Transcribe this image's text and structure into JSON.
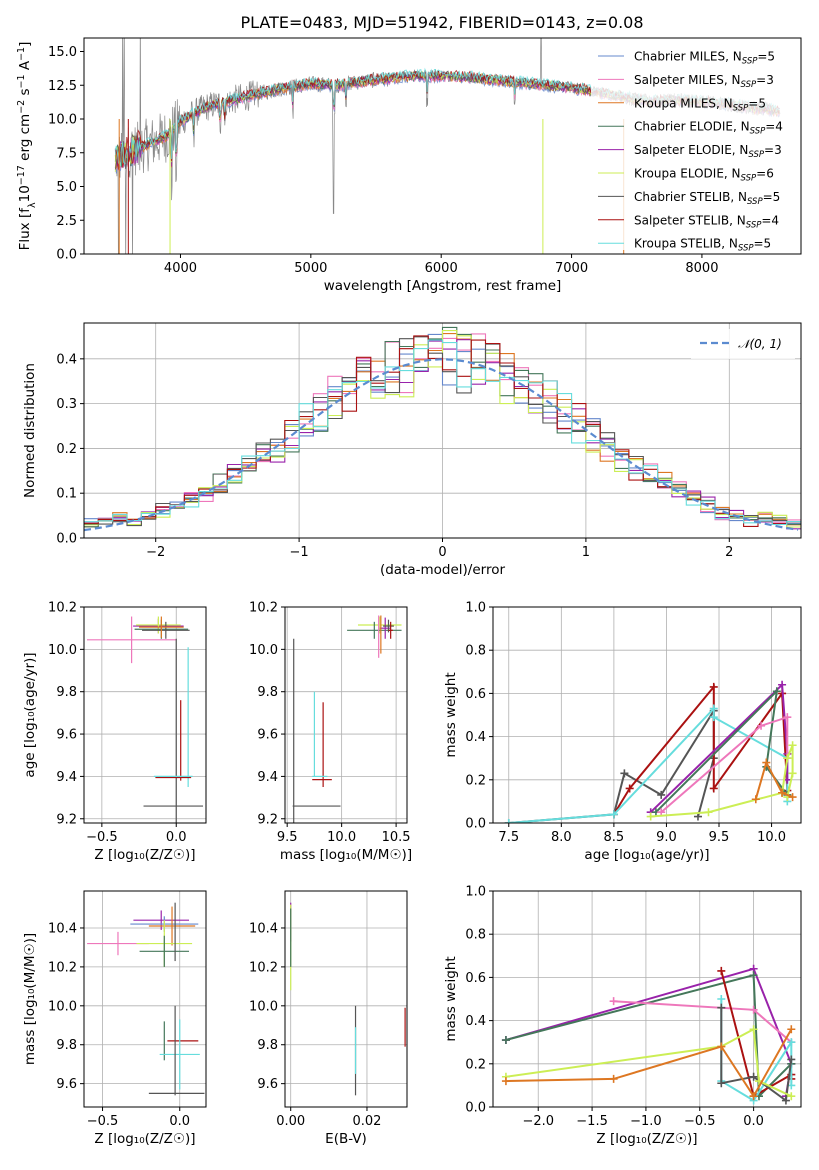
{
  "figure_title": "PLATE=0483, MJD=51942, FIBERID=0143, z=0.08",
  "colors": {
    "chabrier_miles": "#6688cc",
    "salpeter_miles": "#ee77bb",
    "kroupa_miles": "#dd7722",
    "chabrier_elodie": "#44775a",
    "salpeter_elodie": "#9922aa",
    "kroupa_elodie": "#ccee55",
    "chabrier_stelib": "#555555",
    "salpeter_stelib": "#aa1111",
    "kroupa_stelib": "#66dddd",
    "data": "#888888",
    "gaussian": "#5b8bd0"
  },
  "chart_data": [
    {
      "id": "spectrum",
      "type": "line",
      "title": "PLATE=0483, MJD=51942, FIBERID=0143, z=0.08",
      "xlabel": "wavelength [Angstrom, rest frame]",
      "ylabel_parts": [
        "Flux [f",
        "λ",
        "10",
        "−17",
        " erg cm",
        "−2",
        " s",
        "−1",
        " A",
        "−1",
        "]"
      ],
      "xlim": [
        3260,
        8760
      ],
      "ylim": [
        0,
        16
      ],
      "xticks": [
        4000,
        5000,
        6000,
        7000,
        8000
      ],
      "yticks": [
        0.0,
        2.5,
        5.0,
        7.5,
        10.0,
        12.5,
        15.0
      ],
      "grid": false,
      "legend_position": "top-right",
      "legend": [
        {
          "label": "Chabrier MILES, N",
          "sub": "SSP",
          "n": "=5",
          "color": "#6688cc"
        },
        {
          "label": "Salpeter MILES, N",
          "sub": "SSP",
          "n": "=3",
          "color": "#ee77bb"
        },
        {
          "label": "Kroupa MILES, N",
          "sub": "SSP",
          "n": "=5",
          "color": "#dd7722"
        },
        {
          "label": "Chabrier ELODIE, N",
          "sub": "SSP",
          "n": "=4",
          "color": "#44775a"
        },
        {
          "label": "Salpeter ELODIE, N",
          "sub": "SSP",
          "n": "=3",
          "color": "#9922aa"
        },
        {
          "label": "Kroupa ELODIE, N",
          "sub": "SSP",
          "n": "=6",
          "color": "#ccee55"
        },
        {
          "label": "Chabrier STELIB, N",
          "sub": "SSP",
          "n": "=5",
          "color": "#555555"
        },
        {
          "label": "Salpeter STELIB, N",
          "sub": "SSP",
          "n": "=4",
          "color": "#aa1111"
        },
        {
          "label": "Kroupa STELIB, N",
          "sub": "SSP",
          "n": "=5",
          "color": "#66dddd"
        }
      ],
      "continuum_x": [
        3500,
        3600,
        3700,
        3800,
        3900,
        4000,
        4100,
        4200,
        4400,
        4600,
        4800,
        5000,
        5200,
        5400,
        5600,
        5800,
        6000,
        6200,
        6400,
        6600,
        6800,
        7000,
        7200,
        7400,
        7600,
        7800,
        8000,
        8200,
        8400,
        8600
      ],
      "continuum_y": [
        7.0,
        7.6,
        7.9,
        8.3,
        8.8,
        9.8,
        10.4,
        10.9,
        11.4,
        11.9,
        12.3,
        12.6,
        12.5,
        12.8,
        13.0,
        13.2,
        13.2,
        13.1,
        12.9,
        12.7,
        12.5,
        12.3,
        12.0,
        11.6,
        11.3,
        11.4,
        11.3,
        11.1,
        10.8,
        10.6
      ]
    },
    {
      "id": "residuals",
      "type": "histogram",
      "xlabel": "(data-model)/error",
      "ylabel": "Normed distribution",
      "xlim": [
        -2.5,
        2.5
      ],
      "ylim": [
        0,
        0.48
      ],
      "xticks": [
        -2,
        -1,
        0,
        1,
        2
      ],
      "yticks": [
        0.0,
        0.1,
        0.2,
        0.3,
        0.4
      ],
      "grid": true,
      "legend_position": "top-right",
      "legend": [
        {
          "label": "𝒩(0, 1)",
          "color": "#5b8bd0",
          "style": "dashed"
        }
      ],
      "bin_width": 0.1,
      "gaussian": {
        "mean": 0,
        "sigma": 1
      }
    },
    {
      "id": "age-vs-Z",
      "type": "scatter",
      "xlabel": "Z [log₁₀(Z/Z☉)]",
      "ylabel": "age  [log₁₀(age/yr)]",
      "xlim": [
        -0.62,
        0.2
      ],
      "ylim": [
        9.18,
        10.2
      ],
      "xticks": [
        -0.5,
        0.0
      ],
      "yticks": [
        9.2,
        9.4,
        9.6,
        9.8,
        10.0,
        10.2
      ],
      "grid": true,
      "points": [
        {
          "x": -0.3,
          "y": 10.045,
          "xerr": 0.3,
          "yerr": 0.11,
          "color": "#ee77bb"
        },
        {
          "x": -0.12,
          "y": 10.11,
          "xerr": 0.17,
          "yerr": 0.035,
          "color": "#9922aa"
        },
        {
          "x": -0.12,
          "y": 10.115,
          "xerr": 0.15,
          "yerr": 0.04,
          "color": "#ccee55"
        },
        {
          "x": -0.1,
          "y": 10.095,
          "xerr": 0.18,
          "yerr": 0.045,
          "color": "#44775a"
        },
        {
          "x": -0.07,
          "y": 10.09,
          "xerr": 0.16,
          "yerr": 0.04,
          "color": "#555555"
        },
        {
          "x": -0.1,
          "y": 10.105,
          "xerr": 0.15,
          "yerr": 0.05,
          "color": "#dd7722"
        },
        {
          "x": 0.0,
          "y": 9.6,
          "xerr": 0.0,
          "yerr": 0.45,
          "color": "#555555"
        },
        {
          "x": 0.03,
          "y": 9.57,
          "xerr": 0.0,
          "yerr": 0.19,
          "color": "#aa1111"
        },
        {
          "x": 0.08,
          "y": 9.68,
          "xerr": 0.0,
          "yerr": 0.33,
          "color": "#66dddd"
        },
        {
          "x": -0.02,
          "y": 9.395,
          "xerr": 0.12,
          "yerr": 0.0,
          "color": "#aa1111"
        },
        {
          "x": -0.02,
          "y": 9.4,
          "xerr": 0.13,
          "yerr": 0.0,
          "color": "#66dddd"
        },
        {
          "x": -0.02,
          "y": 9.26,
          "xerr": 0.2,
          "yerr": 0.0,
          "color": "#555555"
        }
      ]
    },
    {
      "id": "age-vs-mass",
      "type": "scatter",
      "xlabel": "mass [log₁₀(M/M☉)]",
      "ylabel": "",
      "xlim": [
        9.48,
        10.6
      ],
      "ylim": [
        9.18,
        10.2
      ],
      "xticks": [
        9.5,
        10.0,
        10.5
      ],
      "yticks": [
        9.2,
        9.4,
        9.6,
        9.8,
        10.0,
        10.2
      ],
      "grid": true,
      "points": [
        {
          "x": 10.35,
          "y": 10.115,
          "xerr": 0.2,
          "yerr": 0.04,
          "color": "#ccee55"
        },
        {
          "x": 10.3,
          "y": 10.09,
          "xerr": 0.25,
          "yerr": 0.04,
          "color": "#44775a"
        },
        {
          "x": 10.4,
          "y": 10.1,
          "xerr": 0.05,
          "yerr": 0.05,
          "color": "#9922aa"
        },
        {
          "x": 10.43,
          "y": 10.11,
          "xerr": 0.05,
          "yerr": 0.03,
          "color": "#555555"
        },
        {
          "x": 10.45,
          "y": 10.09,
          "xerr": 0.02,
          "yerr": 0.04,
          "color": "#aa1111"
        },
        {
          "x": 10.34,
          "y": 10.06,
          "xerr": 0.0,
          "yerr": 0.1,
          "color": "#ee77bb"
        },
        {
          "x": 10.36,
          "y": 10.07,
          "xerr": 0.0,
          "yerr": 0.09,
          "color": "#dd7722"
        },
        {
          "x": 9.56,
          "y": 9.6,
          "xerr": 0.0,
          "yerr": 0.45,
          "color": "#555555"
        },
        {
          "x": 9.75,
          "y": 9.6,
          "xerr": 0.0,
          "yerr": 0.2,
          "color": "#66dddd"
        },
        {
          "x": 9.83,
          "y": 9.55,
          "xerr": 0.0,
          "yerr": 0.2,
          "color": "#aa1111"
        },
        {
          "x": 9.82,
          "y": 9.385,
          "xerr": 0.09,
          "yerr": 0.0,
          "color": "#aa1111"
        },
        {
          "x": 9.8,
          "y": 9.4,
          "xerr": 0.07,
          "yerr": 0.0,
          "color": "#66dddd"
        },
        {
          "x": 9.77,
          "y": 9.26,
          "xerr": 0.22,
          "yerr": 0.0,
          "color": "#555555"
        }
      ]
    },
    {
      "id": "weight-vs-age",
      "type": "line",
      "xlabel": "age  [log₁₀(age/yr)]",
      "ylabel": "mass weight",
      "xlim": [
        7.35,
        10.28
      ],
      "ylim": [
        0,
        1
      ],
      "xticks": [
        7.5,
        8.0,
        8.5,
        9.0,
        9.5,
        10.0
      ],
      "yticks": [
        0.0,
        0.2,
        0.4,
        0.6,
        0.8,
        1.0
      ],
      "grid": true,
      "series": [
        {
          "color": "#555555",
          "x": [
            7.5,
            8.5,
            8.6,
            8.95,
            9.45,
            9.45,
            9.3
          ],
          "y": [
            0.0,
            0.04,
            0.23,
            0.13,
            0.52,
            0.3,
            0.03
          ]
        },
        {
          "color": "#aa1111",
          "x": [
            8.5,
            8.65,
            9.45,
            9.45,
            10.1,
            10.15,
            10.1
          ],
          "y": [
            0.04,
            0.16,
            0.63,
            0.16,
            0.6,
            0.15,
            0.14
          ]
        },
        {
          "color": "#66dddd",
          "x": [
            7.5,
            8.5,
            9.45,
            9.45,
            10.15,
            10.15
          ],
          "y": [
            0.0,
            0.04,
            0.53,
            0.49,
            0.3,
            0.1
          ]
        },
        {
          "color": "#9922aa",
          "x": [
            8.85,
            10.1,
            10.15,
            10.15
          ],
          "y": [
            0.05,
            0.64,
            0.32,
            0.2
          ]
        },
        {
          "color": "#44775a",
          "x": [
            8.9,
            10.05,
            9.95,
            10.15
          ],
          "y": [
            0.05,
            0.61,
            0.26,
            0.13
          ]
        },
        {
          "color": "#ee77bb",
          "x": [
            8.95,
            9.9,
            10.15,
            10.15
          ],
          "y": [
            0.05,
            0.45,
            0.49,
            0.3
          ]
        },
        {
          "color": "#ccee55",
          "x": [
            8.85,
            9.4,
            10.1,
            10.15,
            10.2,
            10.2,
            10.15
          ],
          "y": [
            0.03,
            0.05,
            0.14,
            0.3,
            0.36,
            0.23,
            0.12
          ]
        },
        {
          "color": "#dd7722",
          "x": [
            9.85,
            9.95,
            10.1,
            10.2
          ],
          "y": [
            0.11,
            0.28,
            0.14,
            0.12
          ]
        }
      ]
    },
    {
      "id": "mass-vs-Z",
      "type": "scatter",
      "xlabel": "Z [log₁₀(Z/Z☉)]",
      "ylabel": "mass [log₁₀(M/M☉)]",
      "xlim": [
        -0.62,
        0.17
      ],
      "ylim": [
        9.48,
        10.59
      ],
      "xticks": [
        -0.5,
        0.0
      ],
      "yticks": [
        9.6,
        9.8,
        10.0,
        10.2,
        10.4
      ],
      "grid": true,
      "points": [
        {
          "x": -0.4,
          "y": 10.32,
          "xerr": 0.2,
          "yerr": 0.06,
          "color": "#ee77bb"
        },
        {
          "x": -0.12,
          "y": 10.44,
          "xerr": 0.18,
          "yerr": 0.05,
          "color": "#9922aa"
        },
        {
          "x": -0.1,
          "y": 10.42,
          "xerr": 0.22,
          "yerr": 0.04,
          "color": "#6688cc"
        },
        {
          "x": -0.05,
          "y": 10.41,
          "xerr": 0.15,
          "yerr": 0.1,
          "color": "#dd7722"
        },
        {
          "x": -0.1,
          "y": 10.32,
          "xerr": 0.18,
          "yerr": 0.12,
          "color": "#ccee55"
        },
        {
          "x": -0.1,
          "y": 10.28,
          "xerr": 0.16,
          "yerr": 0.08,
          "color": "#44775a"
        },
        {
          "x": -0.03,
          "y": 10.38,
          "xerr": 0.0,
          "yerr": 0.15,
          "color": "#555555"
        },
        {
          "x": -0.1,
          "y": 9.82,
          "xerr": 0.0,
          "yerr": 0.1,
          "color": "#44775a"
        },
        {
          "x": 0.02,
          "y": 9.82,
          "xerr": 0.1,
          "yerr": 0.0,
          "color": "#aa1111"
        },
        {
          "x": 0.0,
          "y": 9.75,
          "xerr": 0.13,
          "yerr": 0.18,
          "color": "#66dddd"
        },
        {
          "x": -0.03,
          "y": 9.77,
          "xerr": 0.0,
          "yerr": 0.23,
          "color": "#555555"
        },
        {
          "x": -0.02,
          "y": 9.55,
          "xerr": 0.18,
          "yerr": 0.0,
          "color": "#555555"
        }
      ]
    },
    {
      "id": "mass-vs-EBV",
      "type": "scatter",
      "xlabel": "E(B-V)",
      "ylabel": "",
      "xlim": [
        -0.0015,
        0.0305
      ],
      "ylim": [
        9.48,
        10.59
      ],
      "xticks": [
        0.0,
        0.02
      ],
      "yticks": [
        9.6,
        9.8,
        10.0,
        10.2,
        10.4
      ],
      "grid": true,
      "points": [
        {
          "x": 0.0,
          "y": 10.43,
          "xerr": 0.0,
          "yerr": 0.1,
          "color": "#9922aa"
        },
        {
          "x": 0.0,
          "y": 10.3,
          "xerr": 0.0,
          "yerr": 0.22,
          "color": "#ccee55"
        },
        {
          "x": 0.0,
          "y": 10.35,
          "xerr": 0.0,
          "yerr": 0.15,
          "color": "#44775a"
        },
        {
          "x": 0.017,
          "y": 9.77,
          "xerr": 0.0,
          "yerr": 0.23,
          "color": "#555555"
        },
        {
          "x": 0.017,
          "y": 9.77,
          "xerr": 0.0,
          "yerr": 0.12,
          "color": "#66dddd"
        },
        {
          "x": 0.03,
          "y": 9.89,
          "xerr": 0.0,
          "yerr": 0.1,
          "color": "#aa1111"
        }
      ]
    },
    {
      "id": "weight-vs-Z",
      "type": "line",
      "xlabel": "Z [log₁₀(Z/Z☉)]",
      "ylabel": "mass weight",
      "xlim": [
        -2.42,
        0.44
      ],
      "ylim": [
        0,
        1
      ],
      "xticks": [
        -2.0,
        -1.5,
        -1.0,
        -0.5,
        0.0
      ],
      "yticks": [
        0.0,
        0.2,
        0.4,
        0.6,
        0.8,
        1.0
      ],
      "grid": true,
      "series": [
        {
          "color": "#9922aa",
          "x": [
            -2.3,
            0.0,
            0.35,
            0.3
          ],
          "y": [
            0.31,
            0.64,
            0.2,
            0.05
          ]
        },
        {
          "color": "#44775a",
          "x": [
            -2.3,
            0.0,
            0.05,
            0.35
          ],
          "y": [
            0.31,
            0.61,
            0.05,
            0.2
          ]
        },
        {
          "color": "#ee77bb",
          "x": [
            -1.3,
            0.0,
            0.35
          ],
          "y": [
            0.49,
            0.45,
            0.3
          ]
        },
        {
          "color": "#aa1111",
          "x": [
            -0.3,
            0.0,
            0.35,
            0.35
          ],
          "y": [
            0.63,
            0.05,
            0.15,
            0.13
          ]
        },
        {
          "color": "#66dddd",
          "x": [
            -0.3,
            -0.3,
            0.0,
            0.35,
            0.35
          ],
          "y": [
            0.5,
            0.12,
            0.03,
            0.3,
            0.1
          ]
        },
        {
          "color": "#555555",
          "x": [
            -0.3,
            -0.3,
            0.0,
            0.3,
            0.35
          ],
          "y": [
            0.46,
            0.11,
            0.14,
            0.03,
            0.22
          ]
        },
        {
          "color": "#ccee55",
          "x": [
            -2.3,
            -0.3,
            0.0,
            0.05,
            0.35
          ],
          "y": [
            0.14,
            0.28,
            0.36,
            0.12,
            0.05
          ]
        },
        {
          "color": "#dd7722",
          "x": [
            -2.3,
            -1.3,
            -0.3,
            0.0,
            0.35
          ],
          "y": [
            0.12,
            0.13,
            0.28,
            0.05,
            0.36
          ]
        }
      ]
    }
  ]
}
